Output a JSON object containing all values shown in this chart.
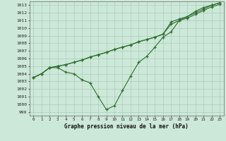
{
  "xlabel": "Graphe pression niveau de la mer (hPa)",
  "xlim": [
    -0.5,
    23.5
  ],
  "ylim": [
    998.5,
    1013.5
  ],
  "yticks": [
    999,
    1000,
    1001,
    1002,
    1003,
    1004,
    1005,
    1006,
    1007,
    1008,
    1009,
    1010,
    1011,
    1012,
    1013
  ],
  "xticks": [
    0,
    1,
    2,
    3,
    4,
    5,
    6,
    7,
    8,
    9,
    10,
    11,
    12,
    13,
    14,
    15,
    16,
    17,
    18,
    19,
    20,
    21,
    22,
    23
  ],
  "background_color": "#cce8d8",
  "plot_bg_color": "#cce8d8",
  "grid_color": "#aaccbb",
  "line_color": "#2d6e2d",
  "series1": [
    1003.5,
    1004.0,
    1004.8,
    1004.8,
    1004.2,
    1004.0,
    1003.2,
    1002.8,
    1001.0,
    999.3,
    999.8,
    1001.8,
    1003.7,
    1005.5,
    1006.3,
    1007.5,
    1008.8,
    1009.5,
    1011.0,
    1011.5,
    1012.2,
    1012.7,
    1013.0,
    1013.3
  ],
  "series2": [
    1003.5,
    1004.0,
    1004.8,
    1005.0,
    1005.2,
    1005.5,
    1005.8,
    1006.2,
    1006.5,
    1006.8,
    1007.2,
    1007.5,
    1007.8,
    1008.2,
    1008.5,
    1008.8,
    1009.2,
    1010.8,
    1011.2,
    1011.5,
    1012.0,
    1012.5,
    1013.0,
    1013.3
  ],
  "series3": [
    1003.5,
    1004.0,
    1004.8,
    1005.0,
    1005.2,
    1005.5,
    1005.8,
    1006.2,
    1006.5,
    1006.8,
    1007.2,
    1007.5,
    1007.8,
    1008.2,
    1008.5,
    1008.8,
    1009.2,
    1010.5,
    1011.0,
    1011.3,
    1011.8,
    1012.3,
    1012.8,
    1013.1
  ]
}
